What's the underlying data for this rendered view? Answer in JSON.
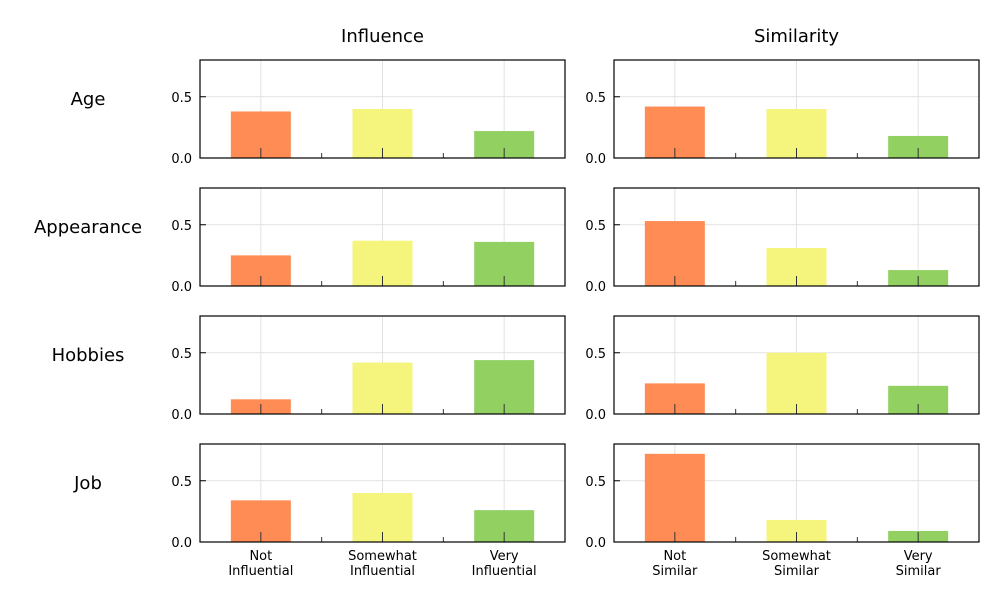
{
  "chart_data": {
    "type": "bar",
    "columns": [
      {
        "title": "Influence",
        "categories": [
          [
            "Not",
            "Influential"
          ],
          [
            "Somewhat",
            "Influential"
          ],
          [
            "Very",
            "Influential"
          ]
        ]
      },
      {
        "title": "Similarity",
        "categories": [
          [
            "Not",
            "Similar"
          ],
          [
            "Somewhat",
            "Similar"
          ],
          [
            "Very",
            "Similar"
          ]
        ]
      }
    ],
    "rows": [
      "Age",
      "Appearance",
      "Hobbies",
      "Job"
    ],
    "values": {
      "Age": {
        "Influence": [
          0.38,
          0.4,
          0.22
        ],
        "Similarity": [
          0.42,
          0.4,
          0.18
        ]
      },
      "Appearance": {
        "Influence": [
          0.25,
          0.37,
          0.36
        ],
        "Similarity": [
          0.53,
          0.31,
          0.13
        ]
      },
      "Hobbies": {
        "Influence": [
          0.12,
          0.42,
          0.44
        ],
        "Similarity": [
          0.25,
          0.5,
          0.23
        ]
      },
      "Job": {
        "Influence": [
          0.34,
          0.4,
          0.26
        ],
        "Similarity": [
          0.72,
          0.18,
          0.09
        ]
      }
    },
    "colors": [
      "#ff8c55",
      "#f5f57e",
      "#92d062"
    ],
    "ylim": [
      0,
      0.8
    ],
    "yticks": [
      0.0,
      0.5
    ],
    "ytick_labels": [
      "0.0",
      "0.5"
    ],
    "grid": true
  }
}
